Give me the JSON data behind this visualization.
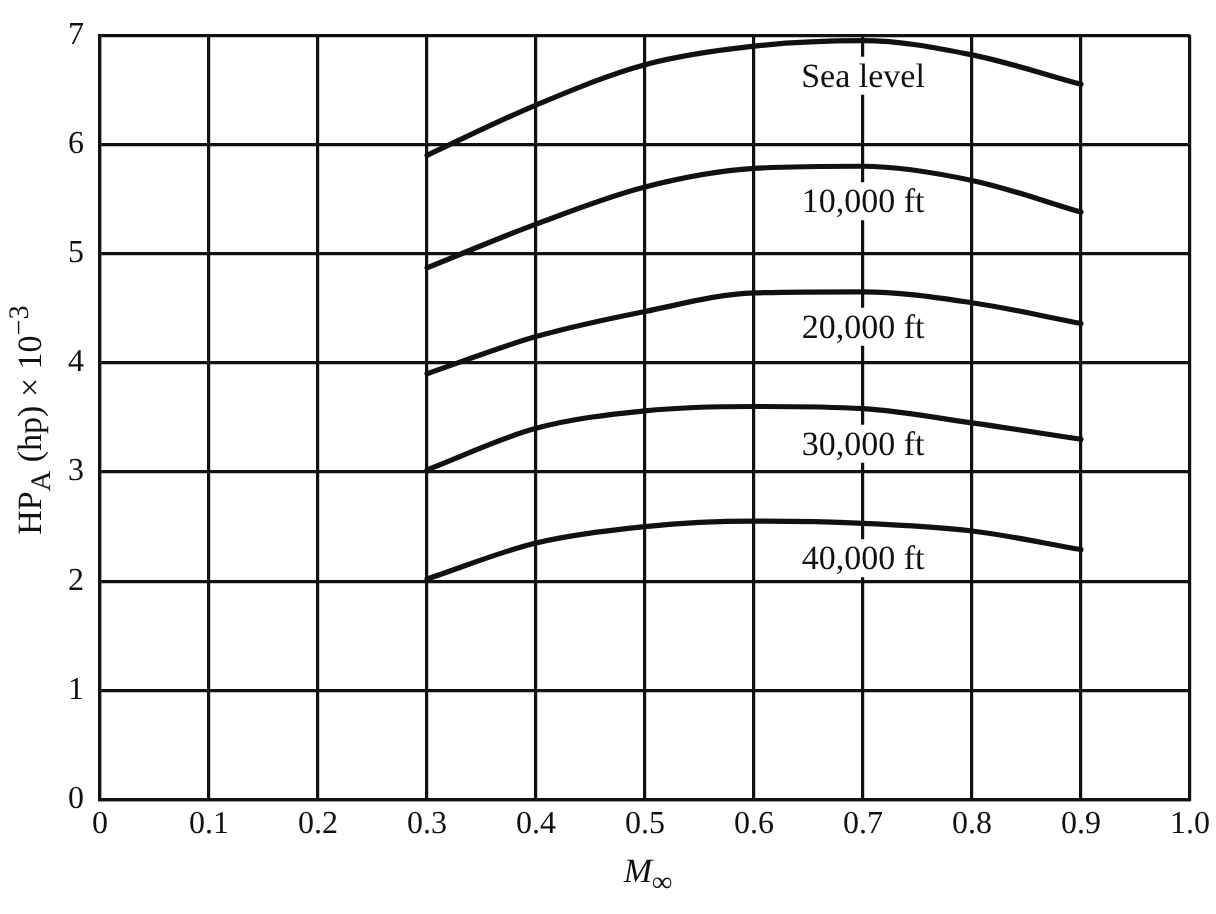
{
  "chart_data": {
    "type": "line",
    "xlabel": "M$_{∞}$",
    "ylabel": "HP$_{A}$ (hp) × 10$^{−3}$",
    "x": [
      0.3,
      0.4,
      0.5,
      0.6,
      0.7,
      0.8,
      0.9
    ],
    "series": [
      {
        "name": "Sea level",
        "color": "#111111",
        "values": [
          5.9,
          6.36,
          6.73,
          6.9,
          6.95,
          6.82,
          6.55
        ]
      },
      {
        "name": "10,000 ft",
        "color": "#111111",
        "values": [
          4.87,
          5.27,
          5.61,
          5.78,
          5.8,
          5.67,
          5.38
        ]
      },
      {
        "name": "20,000 ft",
        "color": "#111111",
        "values": [
          3.9,
          4.24,
          4.47,
          4.64,
          4.65,
          4.55,
          4.36
        ]
      },
      {
        "name": "30,000 ft",
        "color": "#111111",
        "values": [
          3.02,
          3.4,
          3.56,
          3.6,
          3.58,
          3.45,
          3.3
        ]
      },
      {
        "name": "40,000 ft",
        "color": "#111111",
        "values": [
          2.02,
          2.35,
          2.5,
          2.55,
          2.53,
          2.46,
          2.29
        ]
      }
    ],
    "xlim": [
      0,
      1
    ],
    "xticks": [
      0,
      0.1,
      0.2,
      0.3,
      0.4,
      0.5,
      0.6,
      0.7,
      0.8,
      0.9,
      {
        "value": 1,
        "label": "1.0"
      }
    ],
    "ylim": [
      0,
      7
    ],
    "yticks": [
      0,
      1,
      2,
      3,
      4,
      5,
      6,
      7
    ],
    "grid": true,
    "legend": false,
    "marker": "none",
    "line_style": "solid"
  }
}
